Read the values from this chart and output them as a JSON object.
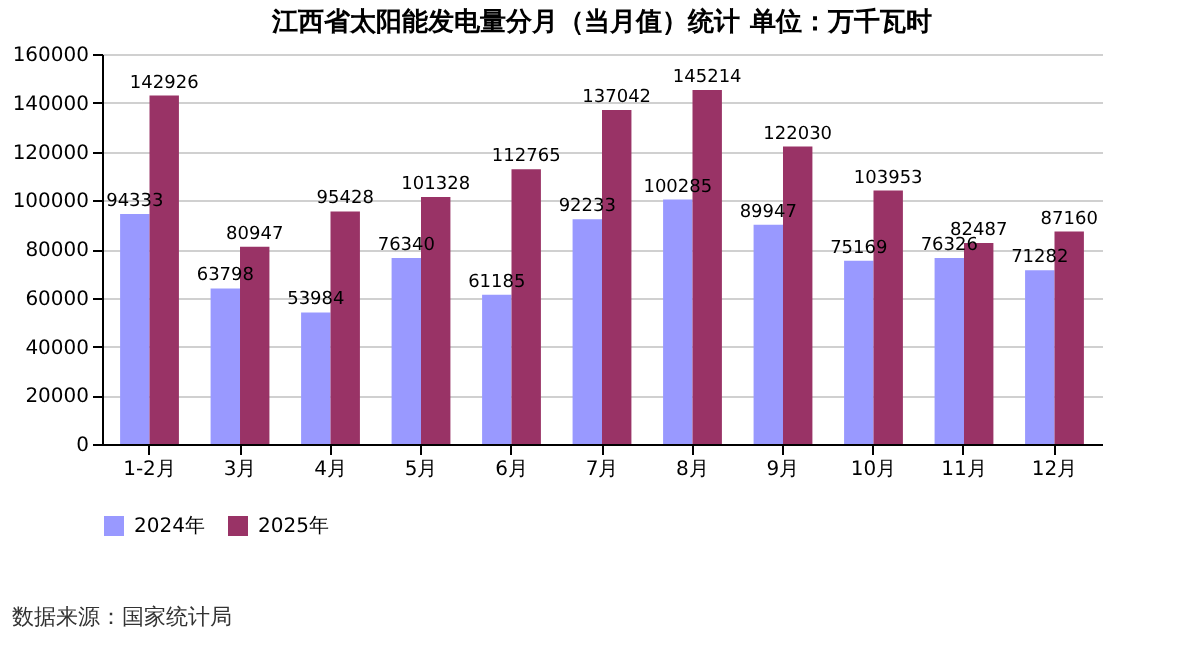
{
  "chart_data": {
    "type": "bar",
    "title": "江西省太阳能发电量分月（当月值）统计 单位：万千瓦时",
    "categories": [
      "1-2月",
      "3月",
      "4月",
      "5月",
      "6月",
      "7月",
      "8月",
      "9月",
      "10月",
      "11月",
      "12月"
    ],
    "series": [
      {
        "name": "2024年",
        "color": "#9999ff",
        "values": [
          94333,
          63798,
          53984,
          76340,
          61185,
          92233,
          100285,
          89947,
          75169,
          76326,
          71282
        ]
      },
      {
        "name": "2025年",
        "color": "#993366",
        "values": [
          142926,
          80947,
          95428,
          101328,
          112765,
          137042,
          145214,
          122030,
          103953,
          82487,
          87160
        ]
      }
    ],
    "ylim": [
      0,
      160000
    ],
    "yticks": [
      0,
      20000,
      40000,
      60000,
      80000,
      100000,
      120000,
      140000,
      160000
    ],
    "grid": "y",
    "legend": "bottom",
    "data_labels": true,
    "annotations": [
      "数据来源：国家统计局"
    ]
  }
}
